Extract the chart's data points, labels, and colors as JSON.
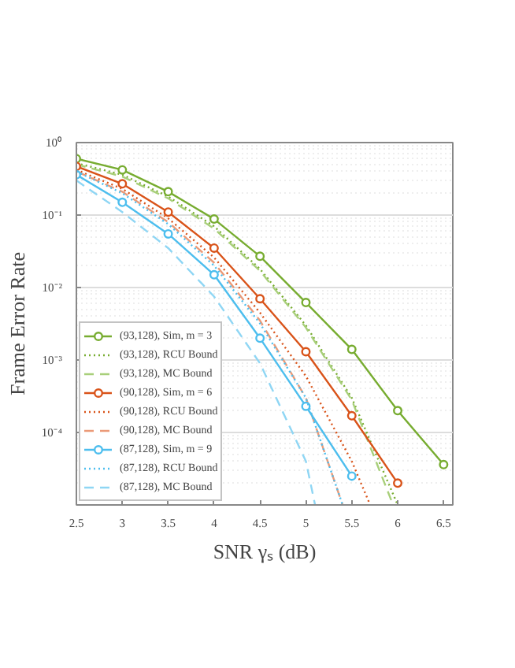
{
  "chart_data": {
    "type": "line",
    "xlabel": "SNR γₛ (dB)",
    "ylabel": "Frame Error Rate",
    "log": "y",
    "grid": true,
    "legend": "bottom left",
    "xlim": [
      2.5,
      6.6
    ],
    "xticks": [
      2.5,
      3,
      3.5,
      4,
      4.5,
      5,
      5.5,
      6,
      6.5
    ],
    "ylim": [
      1e-05,
      1
    ],
    "yticks": [
      {
        "value": 1,
        "label": "10⁰"
      },
      {
        "value": 0.1,
        "label": "10⁻¹"
      },
      {
        "value": 0.01,
        "label": "10⁻²"
      },
      {
        "value": 0.001,
        "label": "10⁻³"
      },
      {
        "value": 0.0001,
        "label": "10⁻⁴"
      },
      {
        "value": 1e-05,
        "label": null
      }
    ],
    "series": [
      {
        "name": "(93,128), Sim, m = 3",
        "color": "#77ac30",
        "marker": "circle",
        "line_style": "solid",
        "x": [
          2.5,
          3,
          3.5,
          4,
          4.5,
          5,
          5.5,
          6,
          6.5
        ],
        "values": [
          0.6,
          0.42,
          0.21,
          0.088,
          0.027,
          0.0062,
          0.0014,
          0.0002,
          3.6e-05
        ]
      },
      {
        "name": "(93,128), RCU Bound",
        "color": "#77ac30",
        "marker": "none",
        "line_style": "dotted",
        "x": [
          2.5,
          3,
          3.5,
          4,
          4.5,
          5,
          5.5,
          6
        ],
        "values": [
          0.52,
          0.36,
          0.18,
          0.07,
          0.018,
          0.003,
          0.0003,
          1e-05
        ]
      },
      {
        "name": "(93,128), MC Bound",
        "color": "#a8cf7a",
        "marker": "none",
        "line_style": "dashed",
        "x": [
          2.5,
          3,
          3.5,
          4,
          4.5,
          5,
          5.5,
          5.95
        ],
        "values": [
          0.5,
          0.34,
          0.17,
          0.065,
          0.017,
          0.0028,
          0.00028,
          1e-05
        ]
      },
      {
        "name": "(90,128), Sim, m = 6",
        "color": "#d95319",
        "marker": "circle",
        "line_style": "solid",
        "x": [
          2.5,
          3,
          3.5,
          4,
          4.5,
          5,
          5.5,
          6
        ],
        "values": [
          0.47,
          0.27,
          0.11,
          0.035,
          0.007,
          0.0013,
          0.00017,
          2e-05
        ]
      },
      {
        "name": "(90,128), RCU Bound",
        "color": "#d95319",
        "marker": "none",
        "line_style": "dotted",
        "x": [
          2.5,
          3,
          3.5,
          4,
          4.5,
          5,
          5.5,
          5.7
        ],
        "values": [
          0.42,
          0.23,
          0.09,
          0.026,
          0.0045,
          0.0006,
          4e-05,
          1e-05
        ]
      },
      {
        "name": "(90,128), MC Bound",
        "color": "#eb9a78",
        "marker": "none",
        "line_style": "dashed",
        "x": [
          2.5,
          3,
          3.5,
          4,
          4.5,
          5,
          5.4
        ],
        "values": [
          0.4,
          0.21,
          0.08,
          0.022,
          0.0035,
          0.0003,
          1e-05
        ]
      },
      {
        "name": "(87,128), Sim, m = 9",
        "color": "#4dbeee",
        "marker": "circle",
        "line_style": "solid",
        "x": [
          2.5,
          3,
          3.5,
          4,
          4.5,
          5,
          5.5
        ],
        "values": [
          0.36,
          0.15,
          0.055,
          0.015,
          0.002,
          0.00023,
          2.5e-05
        ]
      },
      {
        "name": "(87,128), RCU Bound",
        "color": "#4dbeee",
        "marker": "none",
        "line_style": "dotted",
        "x": [
          2.5,
          3,
          3.5,
          4,
          4.5,
          5,
          5.4
        ],
        "values": [
          0.4,
          0.2,
          0.075,
          0.02,
          0.0032,
          0.0003,
          1e-05
        ]
      },
      {
        "name": "(87,128), MC Bound",
        "color": "#8fd6f4",
        "marker": "none",
        "line_style": "dashed",
        "x": [
          2.5,
          3,
          3.5,
          4,
          4.5,
          5,
          5.1
        ],
        "values": [
          0.3,
          0.11,
          0.035,
          0.0075,
          0.0009,
          4e-05,
          1e-05
        ]
      }
    ]
  }
}
